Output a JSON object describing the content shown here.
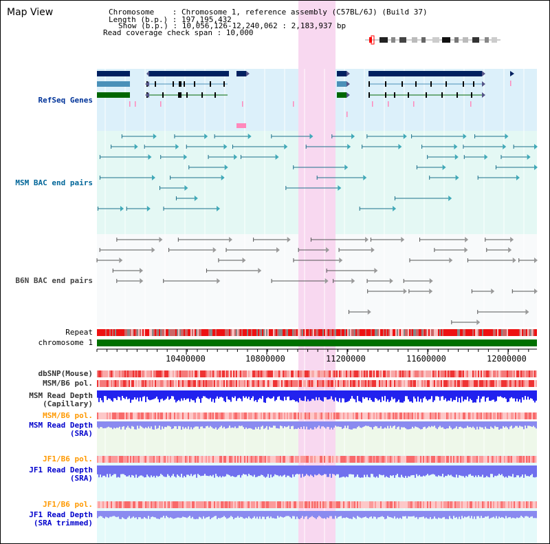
{
  "title": "Map View",
  "info": {
    "line1": "Chromosome    : Chromosome 1, reference assembly (C57BL/6J) (Build 37)",
    "line2": "Length (b.p.) : 197,195,432",
    "line3": "Show (b.p.) : 10,056,126-12,240,062 : 2,183,937 bp",
    "line4": "Read coverage check span : 10,000"
  },
  "tracks": {
    "refseq": "RefSeq Genes",
    "msm_bac": "MSM BAC end pairs",
    "b6n_bac": "B6N BAC end pairs",
    "repeat": "Repeat",
    "chromosome": "chromosome 1",
    "dbsnp": "dbSNP(Mouse)",
    "msm_b6_pol_1": "MSM/B6 pol.",
    "msm_depth_cap_1": "MSM Read Depth",
    "msm_depth_cap_2": "(Capillary)",
    "msm_b6_pol_2": "MSM/B6 pol.",
    "msm_depth_sra_1": "MSM Read Depth",
    "msm_depth_sra_2": "(SRA)",
    "jf1_pol_1": "JF1/B6 pol.",
    "jf1_depth_sra_1": "JF1 Read Depth",
    "jf1_depth_sra_2": "(SRA)",
    "jf1_pol_2": "JF1/B6 pol.",
    "jf1_depth_trim_1": "JF1 Read Depth",
    "jf1_depth_trim_2": "(SRA trimmed)"
  },
  "axis": {
    "ticks": [
      "10400000",
      "10800000",
      "11200000",
      "11600000",
      "12000000"
    ]
  },
  "colors": {
    "refseq_label": "#003399",
    "bac_label": "#006699",
    "b6n_label": "#444444",
    "pol_label": "#ff9900",
    "sra_label": "#0000cc",
    "highlight": "#f8d8f0",
    "gene_dark": "#002060",
    "gene_teal": "#4a90b8",
    "gene_green": "#006600"
  }
}
